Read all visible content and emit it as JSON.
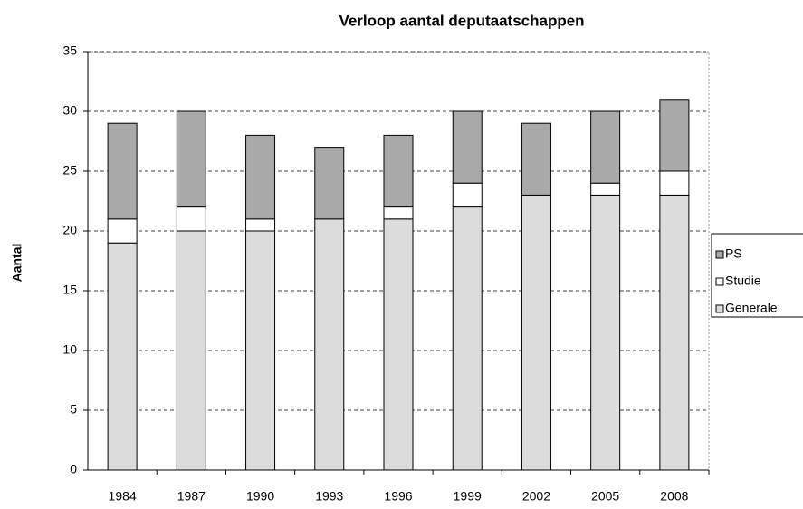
{
  "chart_data": {
    "type": "stacked_bar",
    "title": "Verloop aantal deputaatschappen",
    "y_label": "Aantal",
    "categories": [
      "1984",
      "1987",
      "1990",
      "1993",
      "1996",
      "1999",
      "2002",
      "2005",
      "2008"
    ],
    "series": [
      {
        "name": "Generale",
        "color": "#dcdcdc",
        "values": [
          19,
          20,
          20,
          21,
          21,
          22,
          23,
          23,
          23
        ]
      },
      {
        "name": "Studie",
        "color": "#ffffff",
        "values": [
          2,
          2,
          1,
          0,
          1,
          2,
          0,
          1,
          2
        ]
      },
      {
        "name": "PS",
        "color": "#a9a9a9",
        "values": [
          8,
          8,
          7,
          6,
          6,
          6,
          6,
          6,
          6
        ]
      }
    ],
    "ylim": [
      0,
      35
    ],
    "yticks": [
      0,
      5,
      10,
      15,
      20,
      25,
      30,
      35
    ],
    "grid": true,
    "legend": "right"
  }
}
